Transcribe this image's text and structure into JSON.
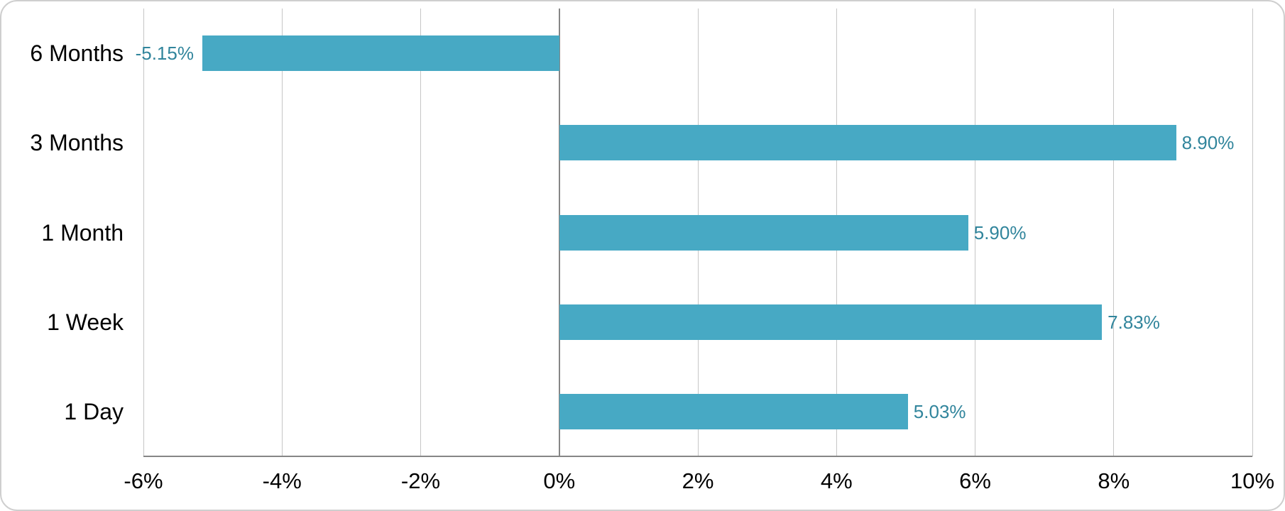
{
  "chart_data": {
    "type": "bar",
    "orientation": "horizontal",
    "title": "",
    "xlabel": "",
    "ylabel": "",
    "categories": [
      "6 Months",
      "3 Months",
      "1 Month",
      "1 Week",
      "1 Day"
    ],
    "values": [
      -5.15,
      8.9,
      5.9,
      7.83,
      5.03
    ],
    "value_labels": [
      "-5.15%",
      "8.90%",
      "5.90%",
      "7.83%",
      "5.03%"
    ],
    "xlim": [
      -6,
      10
    ],
    "xticks": [
      -6,
      -4,
      -2,
      0,
      2,
      4,
      6,
      8,
      10
    ],
    "xtick_labels": [
      "-6%",
      "-4%",
      "-2%",
      "0%",
      "2%",
      "4%",
      "6%",
      "8%",
      "10%"
    ],
    "grid": "vertical-on",
    "legend": "none",
    "colors": {
      "bar": "#47A9C4",
      "value_label": "#31859C",
      "gridline": "#C6C6C6",
      "zero_line": "#868686",
      "axis_line": "#868686",
      "category_label": "#000000",
      "tick_label": "#000000",
      "background": "#FFFFFF",
      "frame_border": "#CFCFCF"
    }
  }
}
